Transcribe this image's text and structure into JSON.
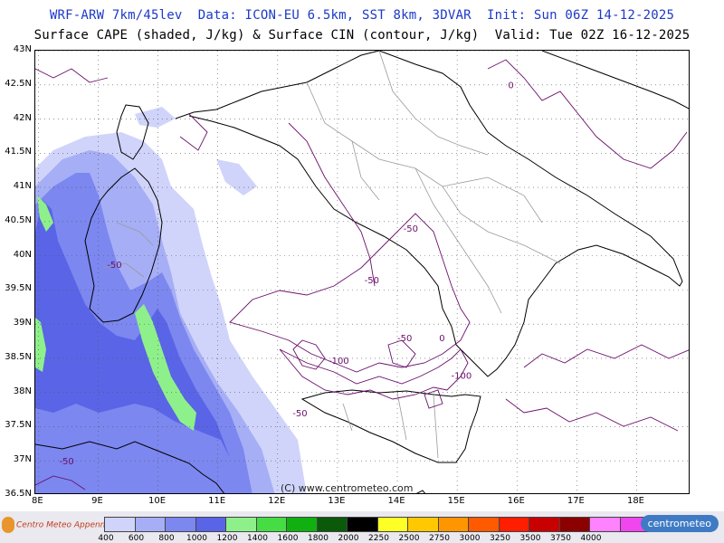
{
  "header": {
    "line1": "WRF-ARW 7km/45lev  Data: ICON-EU 6.5km, SST 8km, 3DVAR  Init: Sun 06Z 14-12-2025",
    "line2": "Surface CAPE (shaded, J/kg) & Surface CIN (contour, J/kg)  Valid: Tue 02Z 16-12-2025",
    "line1_color": "#1c39c9",
    "line2_color": "#000000"
  },
  "map": {
    "lat_labels": [
      "43N",
      "42.5N",
      "42N",
      "41.5N",
      "41N",
      "40.5N",
      "40N",
      "39.5N",
      "39N",
      "38.5N",
      "38N",
      "37.5N",
      "37N",
      "36.5N"
    ],
    "lon_labels": [
      "8E",
      "9E",
      "10E",
      "11E",
      "12E",
      "13E",
      "14E",
      "15E",
      "16E",
      "17E",
      "18E"
    ],
    "copyright": "(C) www.centrometeo.com",
    "cin_contour_labels": [
      {
        "text": "-50",
        "lon": 9.15,
        "lat": 39.82
      },
      {
        "text": "-50",
        "lon": 13.45,
        "lat": 39.6
      },
      {
        "text": "-50",
        "lon": 14.1,
        "lat": 40.35
      },
      {
        "text": "-50",
        "lon": 14.0,
        "lat": 38.75
      },
      {
        "text": "-100",
        "lon": 12.85,
        "lat": 38.42
      },
      {
        "text": "-100",
        "lon": 14.9,
        "lat": 38.2
      },
      {
        "text": "-50",
        "lon": 12.25,
        "lat": 37.65
      },
      {
        "text": "0",
        "lon": 14.7,
        "lat": 38.75
      },
      {
        "text": "0",
        "lon": 15.85,
        "lat": 42.45
      },
      {
        "text": "-50",
        "lon": 8.35,
        "lat": 36.95
      }
    ],
    "colors": {
      "land_border": "#000000",
      "province_border": "#9a9a9a",
      "cin_contour": "#6b0f6b",
      "grid": "#555555"
    }
  },
  "legend": {
    "logo_left_text": "Centro Meteo Appenninico",
    "logo_right_text": "centrometeo",
    "tick_labels": [
      "400",
      "600",
      "800",
      "1000",
      "1200",
      "1400",
      "1600",
      "1800",
      "2000",
      "2250",
      "2500",
      "2750",
      "3000",
      "3250",
      "3500",
      "3750",
      "4000"
    ],
    "colors": [
      "#d0d4fa",
      "#a6aef5",
      "#7c87f0",
      "#5a64e6",
      "#8ef08a",
      "#46dc44",
      "#10b010",
      "#0a5a0a",
      "#000000",
      "#ffff28",
      "#ffc800",
      "#ff9600",
      "#ff5a00",
      "#ff1e00",
      "#c80000",
      "#8c0000",
      "#ff82ff",
      "#f046f0",
      "#c800c8",
      "#6e006e"
    ]
  }
}
